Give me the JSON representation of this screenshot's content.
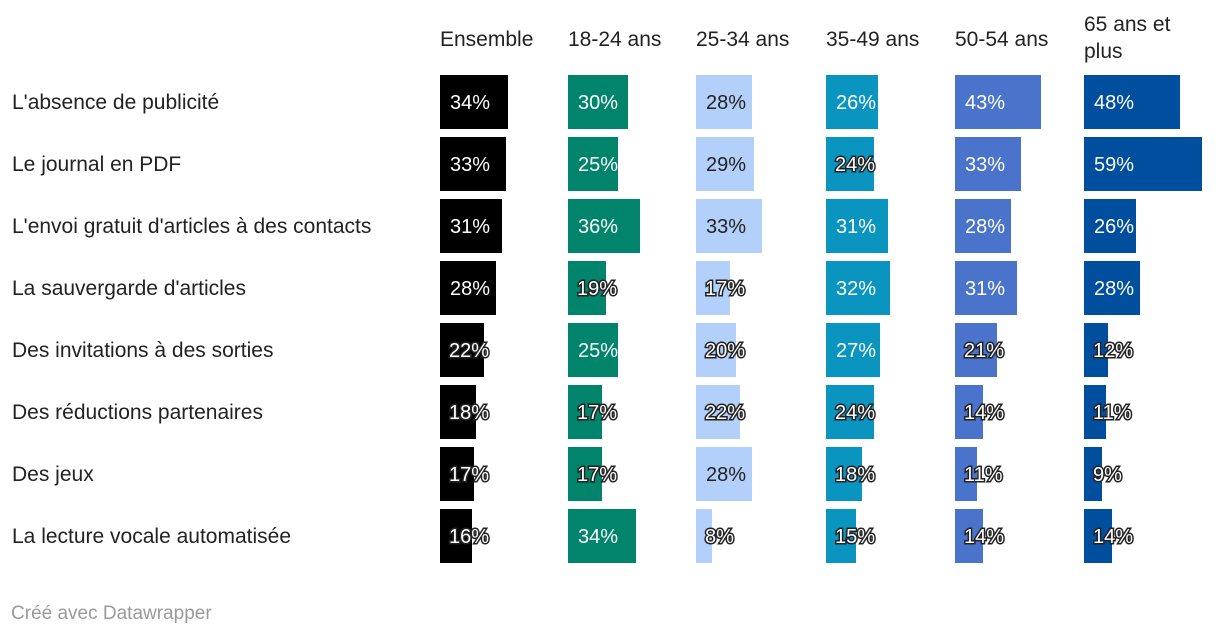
{
  "chart_data": {
    "type": "bar",
    "orientation": "horizontal",
    "layout": "small-multiples",
    "categories": [
      "L'absence de publicité",
      "Le journal en PDF",
      "L'envoi gratuit d'articles à des contacts",
      "La sauvergarde d'articles",
      "Des invitations à des sorties",
      "Des réductions partenaires",
      "Des jeux",
      "La lecture vocale automatisée"
    ],
    "series": [
      {
        "name": "Ensemble",
        "header_lines": [
          "Ensemble"
        ],
        "color": "#000000",
        "values": [
          34,
          33,
          31,
          28,
          22,
          18,
          17,
          16
        ],
        "labels": [
          "34%",
          "33%",
          "31%",
          "28%",
          "22%",
          "18%",
          "17%",
          "16%"
        ]
      },
      {
        "name": "18-24 ans",
        "header_lines": [
          "18-24 ans"
        ],
        "color": "#00846b",
        "values": [
          30,
          25,
          36,
          19,
          25,
          17,
          17,
          34
        ],
        "labels": [
          "30%",
          "25%",
          "36%",
          "19%",
          "25%",
          "17%",
          "17%",
          "34%"
        ]
      },
      {
        "name": "25-34 ans",
        "header_lines": [
          "25-34 ans"
        ],
        "color": "#b3d0fb",
        "values": [
          28,
          29,
          33,
          17,
          20,
          22,
          28,
          8
        ],
        "labels": [
          "28%",
          "29%",
          "33%",
          "17%",
          "20%",
          "22%",
          "28%",
          "8%"
        ]
      },
      {
        "name": "35-49 ans",
        "header_lines": [
          "35-49 ans"
        ],
        "color": "#0a94c0",
        "values": [
          26,
          24,
          31,
          32,
          27,
          24,
          18,
          15
        ],
        "labels": [
          "26%",
          "24%",
          "31%",
          "32%",
          "27%",
          "24%",
          "18%",
          "15%"
        ]
      },
      {
        "name": "50-54 ans",
        "header_lines": [
          "50-54 ans"
        ],
        "color": "#4a74cc",
        "values": [
          43,
          33,
          28,
          31,
          21,
          14,
          11,
          14
        ],
        "labels": [
          "43%",
          "33%",
          "28%",
          "31%",
          "21%",
          "14%",
          "11%",
          "14%"
        ]
      },
      {
        "name": "65 ans et plus",
        "header_lines": [
          "65 ans et",
          "plus"
        ],
        "color": "#004f9e",
        "values": [
          48,
          59,
          26,
          28,
          12,
          11,
          9,
          14
        ],
        "labels": [
          "48%",
          "59%",
          "26%",
          "28%",
          "12%",
          "11%",
          "9%",
          "14%"
        ]
      }
    ],
    "xlim": [
      0,
      60
    ],
    "value_suffix": "%"
  },
  "footer": {
    "credit": "Créé avec Datawrapper"
  }
}
